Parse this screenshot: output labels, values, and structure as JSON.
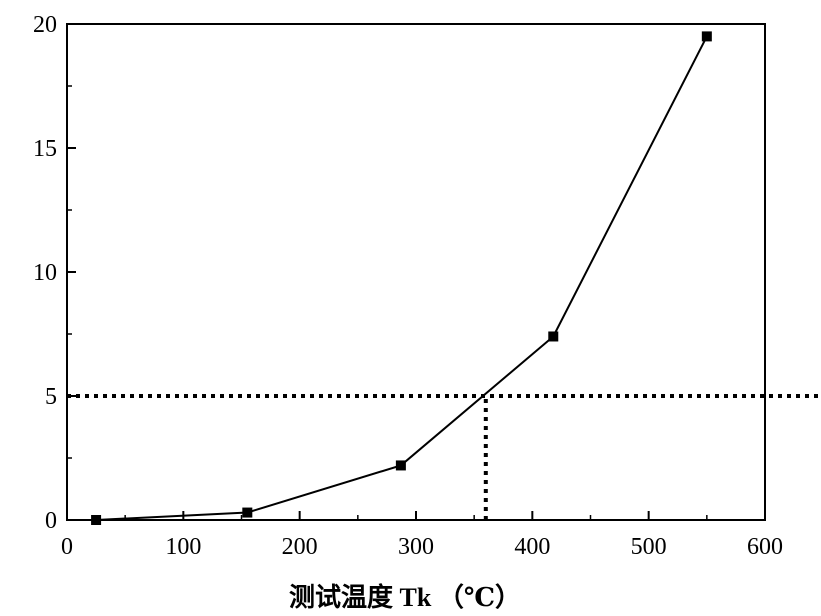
{
  "chart_data": {
    "type": "line",
    "title": "",
    "xlabel": "测试温度 Tk （℃）",
    "ylabel": "",
    "xlim": [
      0,
      600
    ],
    "ylim": [
      0,
      20
    ],
    "xticks": [
      0,
      100,
      200,
      300,
      400,
      500,
      600
    ],
    "yticks": [
      0,
      5,
      10,
      15,
      20
    ],
    "xtick_labels": [
      "0",
      "100",
      "200",
      "300",
      "400",
      "500",
      "600"
    ],
    "ytick_labels": [
      "0",
      "5",
      "10",
      "15",
      "20"
    ],
    "grid": false,
    "legend": "none",
    "series": [
      {
        "marker": "square",
        "color": "#000000",
        "x": [
          25,
          155,
          287,
          418,
          550
        ],
        "y": [
          0.0,
          0.3,
          2.2,
          7.4,
          19.5
        ]
      }
    ],
    "reference_lines": {
      "horizontal": {
        "y": 5,
        "style": "dotted",
        "extends_to": "right-edge"
      },
      "vertical": {
        "x": 360,
        "style": "dotted",
        "from_y": 0,
        "to_y": 5
      }
    }
  }
}
